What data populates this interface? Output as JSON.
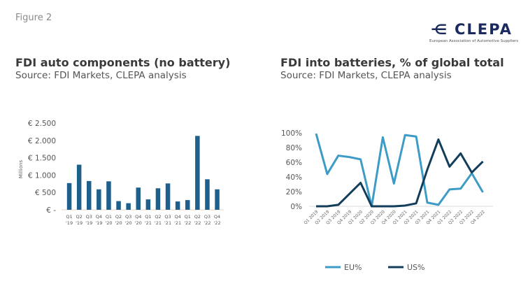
{
  "figure_label": "Figure 2",
  "logo": {
    "name": "CLEPA",
    "tagline": "European Association of Automotive Suppliers"
  },
  "chart_data": [
    {
      "type": "bar",
      "title": "FDI auto components (no battery)",
      "subtitle": "Source: FDI Markets, CLEPA analysis",
      "ylabel": "Millions",
      "xlabel": "",
      "ylim": [
        0,
        2500
      ],
      "yticks": [
        0,
        500,
        1000,
        1500,
        2000,
        2500
      ],
      "ytick_labels": [
        "€ -",
        "€ 500",
        "€ 1.000",
        "€ 1.500",
        "€ 2.000",
        "€ 2.500"
      ],
      "categories": [
        [
          "Q1",
          "'19"
        ],
        [
          "Q2",
          "'19"
        ],
        [
          "Q3",
          "'19"
        ],
        [
          "Q4",
          "'19"
        ],
        [
          "Q1",
          "'20"
        ],
        [
          "Q2",
          "'20"
        ],
        [
          "Q3",
          "'20"
        ],
        [
          "Q4",
          "'20"
        ],
        [
          "Q1",
          "'21"
        ],
        [
          "Q2",
          "'21"
        ],
        [
          "Q3",
          "'21"
        ],
        [
          "Q4",
          "'21"
        ],
        [
          "Q1",
          "'22"
        ],
        [
          "Q2",
          "'22"
        ],
        [
          "Q3",
          "'22"
        ],
        [
          "Q4",
          "'22"
        ]
      ],
      "values": [
        770,
        1300,
        830,
        590,
        820,
        250,
        190,
        640,
        300,
        620,
        760,
        240,
        280,
        2130,
        880,
        590
      ],
      "color": "#1f5f8b",
      "grid": false
    },
    {
      "type": "line",
      "title": "FDI into batteries, % of global total",
      "subtitle": "Source: FDI Markets, CLEPA analysis",
      "ylim": [
        0,
        100
      ],
      "yticks": [
        0,
        20,
        40,
        60,
        80,
        100
      ],
      "ytick_labels": [
        "0%",
        "20%",
        "40%",
        "60%",
        "80%",
        "100%"
      ],
      "categories": [
        "Q1 2019",
        "Q2 2019",
        "Q3 2019",
        "Q4 2019",
        "Q1 2020",
        "Q2 2020",
        "Q3 2020",
        "Q4 2020",
        "Q1 2021",
        "Q2 2021",
        "Q3 2021",
        "Q4 2021",
        "Q1 2022",
        "Q2 2022",
        "Q3 2022",
        "Q4 2022"
      ],
      "series": [
        {
          "name": "EU%",
          "color": "#3d9cc5",
          "values": [
            99,
            44,
            69,
            67,
            64,
            0,
            94,
            31,
            97,
            95,
            5,
            2,
            23,
            24,
            45,
            19
          ]
        },
        {
          "name": "US%",
          "color": "#123e5c",
          "values": [
            0,
            0,
            2,
            17,
            32,
            0,
            0,
            0,
            1,
            4,
            50,
            91,
            54,
            72,
            46,
            61
          ]
        }
      ],
      "legend_position": "bottom",
      "grid": false
    }
  ]
}
